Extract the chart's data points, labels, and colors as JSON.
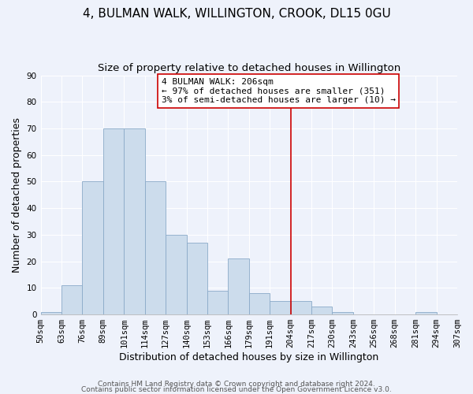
{
  "title": "4, BULMAN WALK, WILLINGTON, CROOK, DL15 0GU",
  "subtitle": "Size of property relative to detached houses in Willington",
  "xlabel": "Distribution of detached houses by size in Willington",
  "ylabel": "Number of detached properties",
  "bin_labels": [
    "50sqm",
    "63sqm",
    "76sqm",
    "89sqm",
    "101sqm",
    "114sqm",
    "127sqm",
    "140sqm",
    "153sqm",
    "166sqm",
    "179sqm",
    "191sqm",
    "204sqm",
    "217sqm",
    "230sqm",
    "243sqm",
    "256sqm",
    "268sqm",
    "281sqm",
    "294sqm",
    "307sqm"
  ],
  "bar_heights": [
    1,
    11,
    50,
    70,
    70,
    50,
    30,
    27,
    9,
    21,
    8,
    5,
    5,
    3,
    1,
    0,
    0,
    0,
    1,
    0,
    1
  ],
  "bar_color": "#ccdcec",
  "bar_edge_color": "#8aaac8",
  "vline_index": 12,
  "vline_color": "#cc0000",
  "annotation_line1": "4 BULMAN WALK: 206sqm",
  "annotation_line2": "← 97% of detached houses are smaller (351)",
  "annotation_line3": "3% of semi-detached houses are larger (10) →",
  "annotation_box_color": "#ffffff",
  "annotation_box_edge": "#cc0000",
  "ylim": [
    0,
    90
  ],
  "yticks": [
    0,
    10,
    20,
    30,
    40,
    50,
    60,
    70,
    80,
    90
  ],
  "footer_line1": "Contains HM Land Registry data © Crown copyright and database right 2024.",
  "footer_line2": "Contains public sector information licensed under the Open Government Licence v3.0.",
  "background_color": "#eef2fb",
  "grid_color": "#ffffff",
  "title_fontsize": 11,
  "subtitle_fontsize": 9.5,
  "axis_label_fontsize": 9,
  "tick_fontsize": 7.5,
  "annotation_fontsize": 8,
  "footer_fontsize": 6.5
}
